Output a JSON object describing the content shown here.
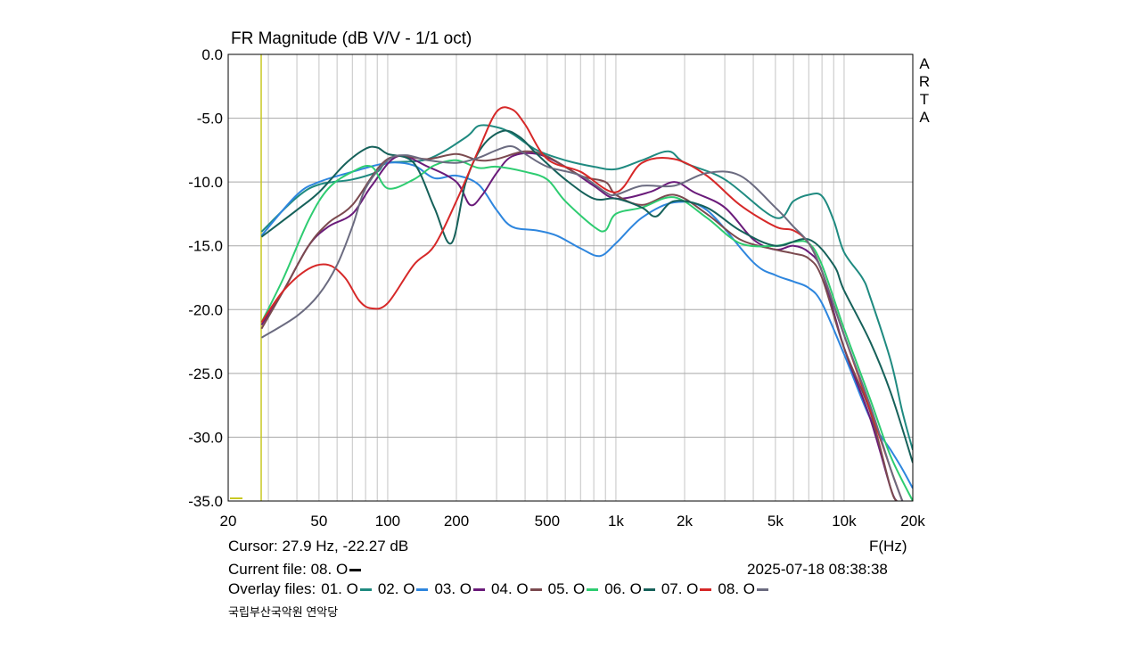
{
  "chart_data": {
    "type": "line",
    "title": "FR Magnitude (dB V/V - 1/1 oct)",
    "xlabel": "F(Hz)",
    "ylabel": "",
    "x_scale": "log",
    "xlim": [
      20,
      20000
    ],
    "ylim": [
      -35,
      0
    ],
    "grid": true,
    "y_ticks": [
      {
        "v": 0,
        "label": "0.0"
      },
      {
        "v": -5,
        "label": "-5.0"
      },
      {
        "v": -10,
        "label": "-10.0"
      },
      {
        "v": -15,
        "label": "-15.0"
      },
      {
        "v": -20,
        "label": "-20.0"
      },
      {
        "v": -25,
        "label": "-25.0"
      },
      {
        "v": -30,
        "label": "-30.0"
      },
      {
        "v": -35,
        "label": "-35.0"
      }
    ],
    "x_ticks": [
      {
        "v": 20,
        "label": "20"
      },
      {
        "v": 50,
        "label": "50"
      },
      {
        "v": 100,
        "label": "100"
      },
      {
        "v": 200,
        "label": "200"
      },
      {
        "v": 500,
        "label": "500"
      },
      {
        "v": 1000,
        "label": "1k"
      },
      {
        "v": 2000,
        "label": "2k"
      },
      {
        "v": 5000,
        "label": "5k"
      },
      {
        "v": 10000,
        "label": "10k"
      },
      {
        "v": 20000,
        "label": "20k"
      }
    ],
    "cursor_freq": 27.9,
    "series": [
      {
        "name": "01. O",
        "color": "#1f8a80",
        "points": [
          [
            28,
            -13.9
          ],
          [
            40,
            -11.2
          ],
          [
            50,
            -10.2
          ],
          [
            70,
            -9.8
          ],
          [
            90,
            -9.2
          ],
          [
            100,
            -8.5
          ],
          [
            150,
            -8.2
          ],
          [
            220,
            -6.5
          ],
          [
            250,
            -5.6
          ],
          [
            300,
            -5.7
          ],
          [
            350,
            -6.2
          ],
          [
            450,
            -7.5
          ],
          [
            600,
            -8.3
          ],
          [
            800,
            -8.8
          ],
          [
            1000,
            -9
          ],
          [
            1300,
            -8.3
          ],
          [
            1700,
            -7.6
          ],
          [
            2000,
            -8.5
          ],
          [
            3000,
            -9.8
          ],
          [
            5000,
            -12.8
          ],
          [
            6000,
            -11.5
          ],
          [
            7000,
            -11
          ],
          [
            8000,
            -11.1
          ],
          [
            9000,
            -13
          ],
          [
            10000,
            -15.5
          ],
          [
            12000,
            -17.5
          ],
          [
            13000,
            -19
          ],
          [
            16000,
            -24
          ],
          [
            18000,
            -28
          ],
          [
            20000,
            -31
          ]
        ]
      },
      {
        "name": "02. O",
        "color": "#2e86de",
        "points": [
          [
            28,
            -14.2
          ],
          [
            40,
            -11
          ],
          [
            50,
            -10
          ],
          [
            70,
            -9.2
          ],
          [
            100,
            -8.5
          ],
          [
            130,
            -8.7
          ],
          [
            160,
            -9.7
          ],
          [
            200,
            -9.5
          ],
          [
            250,
            -10.2
          ],
          [
            300,
            -12.2
          ],
          [
            350,
            -13.5
          ],
          [
            450,
            -13.8
          ],
          [
            550,
            -14.2
          ],
          [
            700,
            -15.2
          ],
          [
            850,
            -15.8
          ],
          [
            1000,
            -14.8
          ],
          [
            1300,
            -12.8
          ],
          [
            1800,
            -11.6
          ],
          [
            2500,
            -12.2
          ],
          [
            4000,
            -16.3
          ],
          [
            5000,
            -17.3
          ],
          [
            6000,
            -17.8
          ],
          [
            7000,
            -18.3
          ],
          [
            8000,
            -19.5
          ],
          [
            10000,
            -23.5
          ],
          [
            13000,
            -28.5
          ],
          [
            16000,
            -31
          ],
          [
            18000,
            -32.5
          ],
          [
            20000,
            -34
          ]
        ]
      },
      {
        "name": "03. O",
        "color": "#6a1b7a",
        "points": [
          [
            28,
            -21.2
          ],
          [
            35,
            -18.5
          ],
          [
            45,
            -15
          ],
          [
            55,
            -13.5
          ],
          [
            70,
            -12.5
          ],
          [
            85,
            -10.3
          ],
          [
            110,
            -8
          ],
          [
            150,
            -8.8
          ],
          [
            200,
            -10
          ],
          [
            230,
            -11.8
          ],
          [
            260,
            -11
          ],
          [
            300,
            -9.3
          ],
          [
            350,
            -8
          ],
          [
            450,
            -7.8
          ],
          [
            600,
            -8.8
          ],
          [
            800,
            -10.3
          ],
          [
            1000,
            -11.3
          ],
          [
            1400,
            -10.8
          ],
          [
            1800,
            -10
          ],
          [
            2200,
            -10.8
          ],
          [
            3000,
            -12
          ],
          [
            4000,
            -14.5
          ],
          [
            5000,
            -15.3
          ],
          [
            6000,
            -15
          ],
          [
            7000,
            -15.5
          ],
          [
            8000,
            -17
          ],
          [
            10000,
            -23
          ],
          [
            13000,
            -28.5
          ],
          [
            16000,
            -34
          ],
          [
            17000,
            -35
          ]
        ]
      },
      {
        "name": "04. O",
        "color": "#7b4a4f",
        "points": [
          [
            28,
            -21.5
          ],
          [
            35,
            -18.5
          ],
          [
            45,
            -15
          ],
          [
            55,
            -13.2
          ],
          [
            70,
            -11.8
          ],
          [
            100,
            -8.2
          ],
          [
            150,
            -8.2
          ],
          [
            200,
            -7.8
          ],
          [
            250,
            -8.3
          ],
          [
            300,
            -8.2
          ],
          [
            400,
            -7.6
          ],
          [
            500,
            -8
          ],
          [
            700,
            -9.5
          ],
          [
            900,
            -10
          ],
          [
            1000,
            -11
          ],
          [
            1300,
            -11.8
          ],
          [
            1800,
            -11
          ],
          [
            2500,
            -12.5
          ],
          [
            3500,
            -14.5
          ],
          [
            5000,
            -15.3
          ],
          [
            6000,
            -15.6
          ],
          [
            7000,
            -16
          ],
          [
            8000,
            -17.5
          ],
          [
            10000,
            -23
          ],
          [
            13000,
            -28
          ],
          [
            16000,
            -34
          ],
          [
            17000,
            -35
          ]
        ]
      },
      {
        "name": "05. O",
        "color": "#2ecc71",
        "points": [
          [
            28,
            -21
          ],
          [
            35,
            -17.5
          ],
          [
            45,
            -13
          ],
          [
            55,
            -10.5
          ],
          [
            70,
            -9.2
          ],
          [
            85,
            -8.8
          ],
          [
            100,
            -10.5
          ],
          [
            130,
            -9.8
          ],
          [
            160,
            -8.7
          ],
          [
            200,
            -8.3
          ],
          [
            250,
            -8.9
          ],
          [
            300,
            -8.8
          ],
          [
            400,
            -9.2
          ],
          [
            500,
            -9.8
          ],
          [
            600,
            -11.5
          ],
          [
            800,
            -13.5
          ],
          [
            900,
            -13.8
          ],
          [
            1000,
            -12.5
          ],
          [
            1300,
            -12
          ],
          [
            1800,
            -11.2
          ],
          [
            2500,
            -12.8
          ],
          [
            3500,
            -14.8
          ],
          [
            5000,
            -15
          ],
          [
            6000,
            -14.7
          ],
          [
            7000,
            -14.8
          ],
          [
            8000,
            -16.5
          ],
          [
            10000,
            -21.5
          ],
          [
            13000,
            -27
          ],
          [
            16000,
            -31.5
          ],
          [
            20000,
            -35
          ]
        ]
      },
      {
        "name": "06. O",
        "color": "#16615a",
        "points": [
          [
            28,
            -14.3
          ],
          [
            40,
            -12.2
          ],
          [
            50,
            -10.8
          ],
          [
            65,
            -8.6
          ],
          [
            80,
            -7.4
          ],
          [
            90,
            -7.3
          ],
          [
            100,
            -7.8
          ],
          [
            130,
            -8.5
          ],
          [
            160,
            -12
          ],
          [
            190,
            -14.8
          ],
          [
            220,
            -10
          ],
          [
            260,
            -7.2
          ],
          [
            320,
            -6
          ],
          [
            380,
            -6.5
          ],
          [
            450,
            -7.8
          ],
          [
            600,
            -9.8
          ],
          [
            800,
            -11.3
          ],
          [
            1000,
            -11.3
          ],
          [
            1300,
            -12
          ],
          [
            1500,
            -12.7
          ],
          [
            1800,
            -11.5
          ],
          [
            2500,
            -12
          ],
          [
            3500,
            -13.8
          ],
          [
            5000,
            -15
          ],
          [
            7000,
            -14.5
          ],
          [
            9000,
            -16.5
          ],
          [
            10000,
            -18.5
          ],
          [
            13000,
            -22.5
          ],
          [
            16000,
            -26.5
          ],
          [
            20000,
            -32
          ]
        ]
      },
      {
        "name": "07. O",
        "color": "#d62828",
        "points": [
          [
            28,
            -21
          ],
          [
            35,
            -18.5
          ],
          [
            45,
            -16.8
          ],
          [
            55,
            -16.5
          ],
          [
            65,
            -17.5
          ],
          [
            75,
            -19.3
          ],
          [
            85,
            -19.9
          ],
          [
            100,
            -19.5
          ],
          [
            130,
            -16.5
          ],
          [
            160,
            -15
          ],
          [
            200,
            -11.5
          ],
          [
            250,
            -7.5
          ],
          [
            300,
            -4.5
          ],
          [
            350,
            -4.3
          ],
          [
            400,
            -5.5
          ],
          [
            500,
            -8.2
          ],
          [
            700,
            -9.2
          ],
          [
            1000,
            -10.8
          ],
          [
            1300,
            -8.5
          ],
          [
            1800,
            -8.2
          ],
          [
            2500,
            -9.5
          ],
          [
            3500,
            -11.8
          ],
          [
            5000,
            -13.5
          ],
          [
            6000,
            -13.8
          ],
          [
            7000,
            -14.8
          ],
          [
            8000,
            -17
          ],
          [
            10000,
            -22
          ],
          [
            13000,
            -27.8
          ],
          [
            16000,
            -32.5
          ],
          [
            18000,
            -35
          ]
        ]
      },
      {
        "name": "08. O",
        "color": "#6b6b80",
        "points": [
          [
            28,
            -22.2
          ],
          [
            40,
            -20.5
          ],
          [
            50,
            -18.8
          ],
          [
            60,
            -16.5
          ],
          [
            70,
            -13.5
          ],
          [
            80,
            -10.5
          ],
          [
            100,
            -8.3
          ],
          [
            120,
            -7.9
          ],
          [
            150,
            -8.3
          ],
          [
            200,
            -8.5
          ],
          [
            250,
            -8.1
          ],
          [
            300,
            -7.5
          ],
          [
            350,
            -7.2
          ],
          [
            400,
            -7.8
          ],
          [
            500,
            -8.8
          ],
          [
            700,
            -9.5
          ],
          [
            900,
            -10.8
          ],
          [
            1000,
            -11
          ],
          [
            1300,
            -10.3
          ],
          [
            1800,
            -10.3
          ],
          [
            2500,
            -9.3
          ],
          [
            3500,
            -9.5
          ],
          [
            5000,
            -12
          ],
          [
            6000,
            -13.5
          ],
          [
            7000,
            -14.8
          ],
          [
            8000,
            -17
          ],
          [
            10000,
            -22
          ],
          [
            13000,
            -27.5
          ],
          [
            16000,
            -32.5
          ],
          [
            18000,
            -35
          ]
        ]
      }
    ]
  },
  "header": {
    "title": "FR Magnitude (dB V/V - 1/1 oct)",
    "brand_letters": [
      "A",
      "R",
      "T",
      "A"
    ]
  },
  "footer": {
    "cursor": "Cursor: 27.9 Hz, -22.27 dB",
    "axis_unit": "F(Hz)",
    "current_file": "Current file: 08. O",
    "timestamp": "2025-07-18   08:38:38",
    "overlay_label": "Overlay files:",
    "venue": "국립부산국악원 연악당"
  }
}
